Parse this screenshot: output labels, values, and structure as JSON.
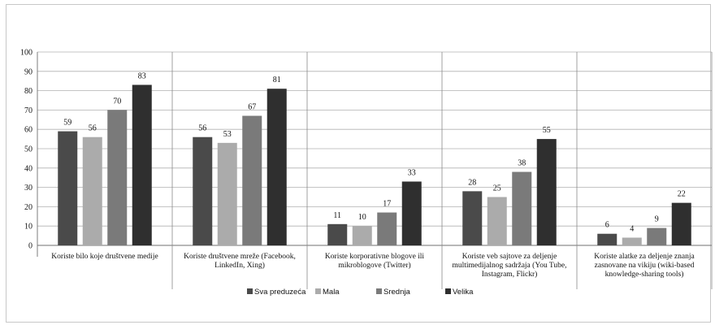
{
  "chart_data": {
    "type": "bar",
    "categories": [
      [
        "Koriste bilo koje društvene medije"
      ],
      [
        "Koriste društvene mreže (Facebook,",
        "LinkedIn, Xing)"
      ],
      [
        "Koriste korporativne blogove ili",
        "mikroblogove (Twitter)"
      ],
      [
        "Koriste veb sajtove za deljenje",
        "multimedijalnog sadržaja (You Tube,",
        "Instagram, Flickr)"
      ],
      [
        "Koriste alatke za deljenje znanja",
        "zasnovane na vikiju (wiki-based",
        "knowledge-sharing tools)"
      ]
    ],
    "series": [
      {
        "name": "Sva preduzeća",
        "color": "#4a4a4a",
        "values": [
          59,
          56,
          11,
          28,
          6
        ]
      },
      {
        "name": "Mala",
        "color": "#ababab",
        "values": [
          56,
          53,
          10,
          25,
          4
        ]
      },
      {
        "name": "Srednja",
        "color": "#7a7a7a",
        "values": [
          70,
          67,
          17,
          38,
          9
        ]
      },
      {
        "name": "Velika",
        "color": "#2f2f2f",
        "values": [
          83,
          81,
          33,
          55,
          22
        ]
      }
    ],
    "ylim": [
      0,
      100
    ],
    "yticks": [
      0,
      10,
      20,
      30,
      40,
      50,
      60,
      70,
      80,
      90,
      100
    ],
    "grid": true,
    "legend": "bottom"
  }
}
